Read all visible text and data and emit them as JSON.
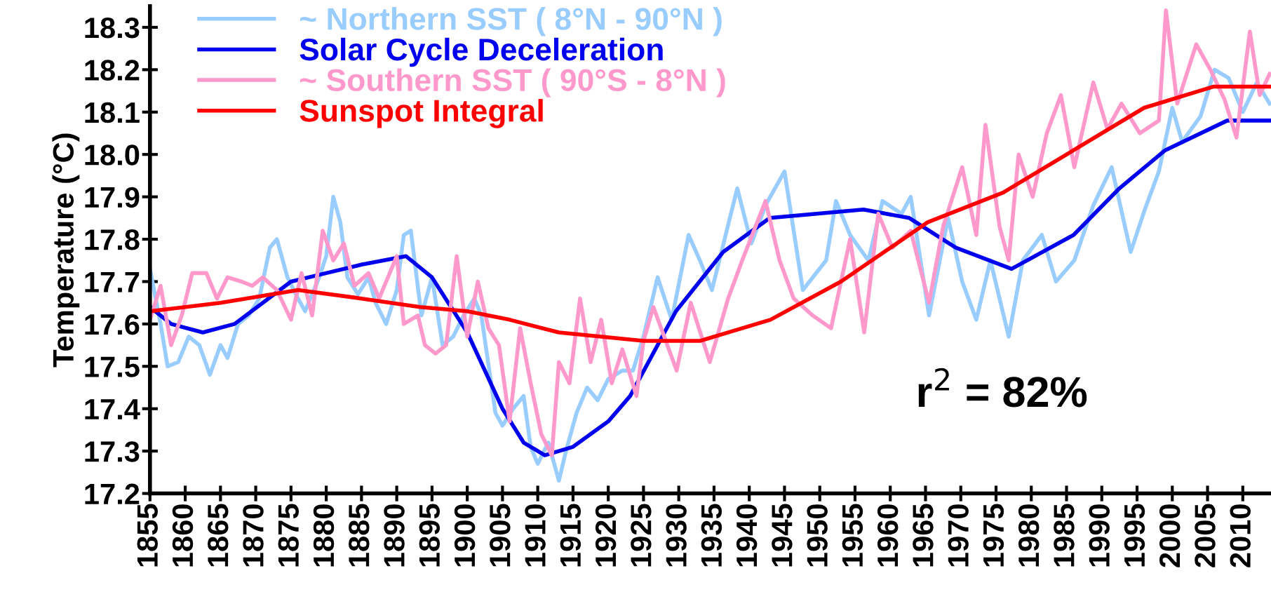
{
  "chart_data": {
    "type": "line",
    "ylabel": "Temperature (°C)",
    "xlim": [
      1855,
      2014
    ],
    "ylim": [
      17.2,
      18.35
    ],
    "xticks": [
      1855,
      1860,
      1865,
      1870,
      1875,
      1880,
      1885,
      1890,
      1895,
      1900,
      1905,
      1910,
      1915,
      1920,
      1925,
      1930,
      1935,
      1940,
      1945,
      1950,
      1955,
      1960,
      1965,
      1970,
      1975,
      1980,
      1985,
      1990,
      1995,
      2000,
      2005,
      2010
    ],
    "yticks": [
      {
        "value": 17.2,
        "label": "17.2"
      },
      {
        "value": 17.3,
        "label": "17.3"
      },
      {
        "value": 17.4,
        "label": "17.4"
      },
      {
        "value": 17.5,
        "label": "17.5"
      },
      {
        "value": 17.6,
        "label": "17.6"
      },
      {
        "value": 17.7,
        "label": "17.7"
      },
      {
        "value": 17.8,
        "label": "17.8"
      },
      {
        "value": 17.9,
        "label": "17.9"
      },
      {
        "value": 18.0,
        "label": "18.0"
      },
      {
        "value": 18.1,
        "label": "18.1"
      },
      {
        "value": 18.2,
        "label": "18.2"
      },
      {
        "value": 18.3,
        "label": "18.3"
      }
    ],
    "grid": false,
    "legend": "top left",
    "marker": "none",
    "line_style": "solid",
    "annotations": [
      "r$^{2}$ = 82%"
    ],
    "series": [
      {
        "name": "~ Northern SST ( 8°N - 90°N )",
        "color": "#99ccff",
        "x": [
          1855,
          1856.5,
          1857.5,
          1859,
          1860.5,
          1862,
          1863.5,
          1865,
          1866,
          1867.5,
          1869,
          1870.5,
          1872,
          1873,
          1874.5,
          1876,
          1877,
          1879,
          1880,
          1881,
          1882,
          1883,
          1884.5,
          1886,
          1887,
          1888.5,
          1890,
          1891,
          1892,
          1893.5,
          1895,
          1896.5,
          1898,
          1899.5,
          1901,
          1902,
          1904,
          1905,
          1906.5,
          1908,
          1909,
          1910,
          1911.5,
          1913,
          1914,
          1915.5,
          1917,
          1918.5,
          1920,
          1922,
          1923.5,
          1925,
          1927,
          1929,
          1931.4,
          1933,
          1934.7,
          1938.3,
          1940.3,
          1942.3,
          1945,
          1947.6,
          1950.9,
          1952.3,
          1954.3,
          1956.9,
          1958.9,
          1961.6,
          1962.9,
          1965.5,
          1968.2,
          1970.2,
          1972.2,
          1974.2,
          1976.8,
          1978.8,
          1981.5,
          1983.5,
          1986.1,
          1988.8,
          1991.4,
          1994.1,
          1996.1,
          1998.1,
          2000,
          2001.4,
          2004,
          2006,
          2008,
          2010,
          2012,
          2013.8
        ],
        "values": [
          17.73,
          17.6,
          17.5,
          17.51,
          17.57,
          17.55,
          17.48,
          17.55,
          17.52,
          17.6,
          17.62,
          17.66,
          17.78,
          17.8,
          17.71,
          17.66,
          17.63,
          17.71,
          17.76,
          17.9,
          17.84,
          17.71,
          17.67,
          17.71,
          17.65,
          17.6,
          17.68,
          17.81,
          17.82,
          17.62,
          17.71,
          17.55,
          17.57,
          17.62,
          17.66,
          17.62,
          17.39,
          17.36,
          17.4,
          17.43,
          17.31,
          17.27,
          17.32,
          17.23,
          17.3,
          17.39,
          17.45,
          17.42,
          17.47,
          17.49,
          17.49,
          17.57,
          17.71,
          17.61,
          17.81,
          17.75,
          17.68,
          17.92,
          17.79,
          17.88,
          17.96,
          17.68,
          17.75,
          17.89,
          17.81,
          17.75,
          17.89,
          17.86,
          17.9,
          17.62,
          17.85,
          17.7,
          17.61,
          17.75,
          17.57,
          17.75,
          17.81,
          17.7,
          17.75,
          17.88,
          17.97,
          17.77,
          17.87,
          17.96,
          18.11,
          18.03,
          18.09,
          18.2,
          18.18,
          18.1,
          18.17,
          18.12
        ]
      },
      {
        "name": "Solar Cycle Deceleration",
        "color": "#0000ee",
        "x": [
          1855,
          1858,
          1862.5,
          1867,
          1871,
          1875,
          1880,
          1885,
          1891.3,
          1895,
          1900,
          1905,
          1908,
          1911,
          1915,
          1920,
          1923.1,
          1929.6,
          1936.3,
          1942.9,
          1956.2,
          1962.7,
          1969.3,
          1977.2,
          1986,
          1992.5,
          1999,
          2007.8,
          2014
        ],
        "values": [
          17.64,
          17.6,
          17.58,
          17.6,
          17.65,
          17.7,
          17.72,
          17.74,
          17.76,
          17.71,
          17.58,
          17.4,
          17.32,
          17.29,
          17.31,
          17.37,
          17.43,
          17.63,
          17.77,
          17.85,
          17.87,
          17.85,
          17.78,
          17.73,
          17.81,
          17.92,
          18.01,
          18.08,
          18.08
        ]
      },
      {
        "name": "~ Southern SST ( 90°S - 8°N )",
        "color": "#ff99cc",
        "x": [
          1855,
          1856.5,
          1858,
          1859.5,
          1861,
          1863,
          1864.5,
          1866,
          1868,
          1869.5,
          1871,
          1873,
          1875,
          1876.5,
          1878,
          1879.5,
          1881,
          1882.5,
          1884,
          1886,
          1887.5,
          1890,
          1891,
          1893,
          1894,
          1895.5,
          1897,
          1898.5,
          1900,
          1901.5,
          1903,
          1904.5,
          1906,
          1907.5,
          1909,
          1910.5,
          1912,
          1913,
          1914.5,
          1916,
          1917.5,
          1919,
          1920.5,
          1922,
          1924,
          1925,
          1926.4,
          1929.7,
          1931.7,
          1934.4,
          1937,
          1939,
          1942.3,
          1944.3,
          1946.3,
          1949,
          1951.6,
          1954.3,
          1956.3,
          1958.3,
          1960.3,
          1962.9,
          1965.5,
          1967.5,
          1970.2,
          1972.2,
          1973.5,
          1975.5,
          1976.8,
          1978.2,
          1980.2,
          1982.2,
          1984.2,
          1986.1,
          1988.8,
          1990.8,
          1992.8,
          1995.4,
          1998.1,
          1999.1,
          2000.7,
          2003.4,
          2005.4,
          2007.4,
          2009.1,
          2011,
          2012.4,
          2013.8
        ],
        "values": [
          17.61,
          17.69,
          17.55,
          17.62,
          17.72,
          17.72,
          17.66,
          17.71,
          17.7,
          17.69,
          17.71,
          17.68,
          17.61,
          17.72,
          17.62,
          17.82,
          17.75,
          17.79,
          17.69,
          17.72,
          17.66,
          17.76,
          17.6,
          17.62,
          17.55,
          17.53,
          17.55,
          17.76,
          17.57,
          17.7,
          17.59,
          17.55,
          17.37,
          17.59,
          17.46,
          17.34,
          17.29,
          17.51,
          17.46,
          17.66,
          17.51,
          17.61,
          17.46,
          17.54,
          17.43,
          17.56,
          17.64,
          17.49,
          17.65,
          17.51,
          17.66,
          17.75,
          17.89,
          17.75,
          17.66,
          17.62,
          17.59,
          17.8,
          17.58,
          17.86,
          17.78,
          17.82,
          17.65,
          17.83,
          17.97,
          17.81,
          18.07,
          17.83,
          17.75,
          18.0,
          17.9,
          18.05,
          18.14,
          17.97,
          18.17,
          18.06,
          18.12,
          18.05,
          18.08,
          18.34,
          18.12,
          18.26,
          18.2,
          18.13,
          18.04,
          18.29,
          18.14,
          18.19
        ]
      },
      {
        "name": "Sunspot Integral",
        "color": "#ff0000",
        "x": [
          1855,
          1865,
          1876,
          1885,
          1893.3,
          1900,
          1906,
          1913,
          1925,
          1933,
          1943,
          1953,
          1965.3,
          1976,
          1986,
          1996,
          2005.8,
          2014
        ],
        "values": [
          17.63,
          17.65,
          17.68,
          17.66,
          17.64,
          17.63,
          17.61,
          17.58,
          17.56,
          17.56,
          17.61,
          17.7,
          17.84,
          17.91,
          18.01,
          18.11,
          18.16,
          18.16
        ]
      }
    ]
  }
}
